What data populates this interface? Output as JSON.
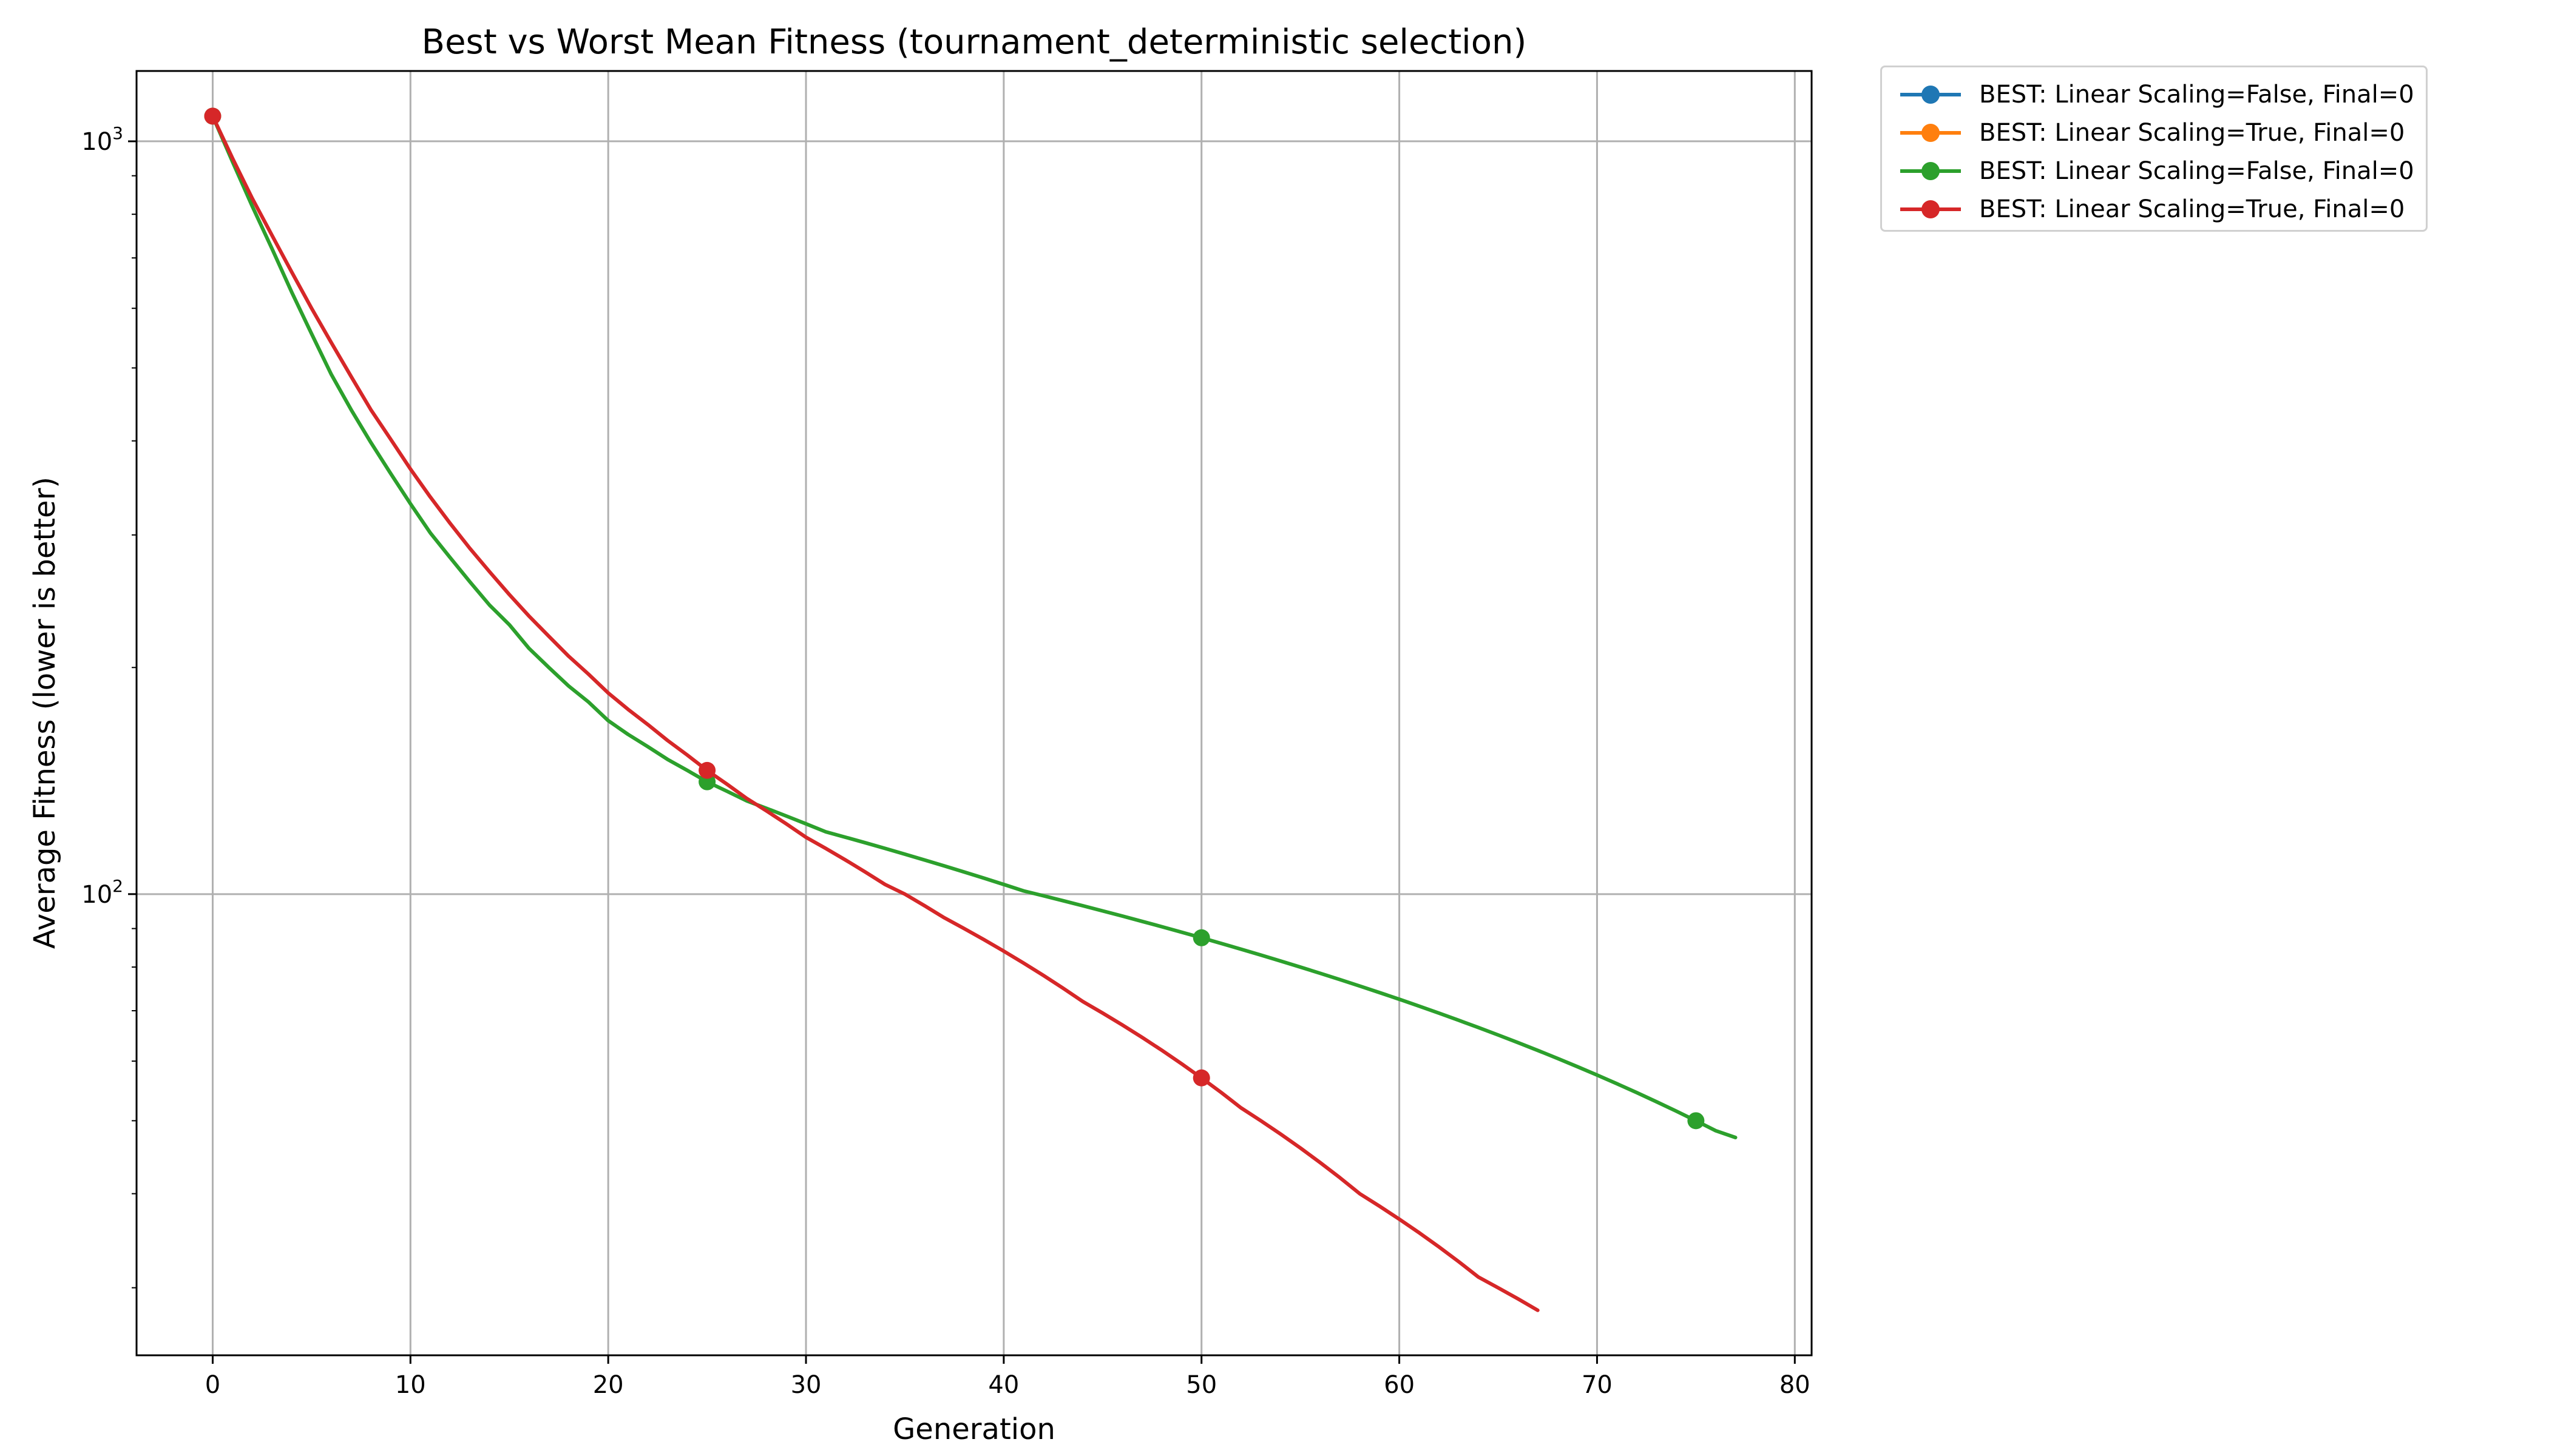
{
  "chart_data": {
    "type": "line",
    "title": "Best vs Worst Mean Fitness (tournament_deterministic selection)",
    "xlabel": "Generation",
    "ylabel": "Average Fitness (lower is better)",
    "xlim": [
      -3.85,
      80.85
    ],
    "ylim": [
      24.4,
      1240
    ],
    "yscale": "log",
    "grid": true,
    "legend_placement": "outside-top-right",
    "x_ticks": [
      0,
      10,
      20,
      30,
      40,
      50,
      60,
      70,
      80
    ],
    "y_ticks": [
      {
        "value": 1000,
        "base": "10",
        "exp": "3"
      },
      {
        "value": 100,
        "base": "10",
        "exp": "2"
      }
    ],
    "marker_every": 25,
    "series": [
      {
        "name": "BEST: Linear Scaling=False, Final=0",
        "color": "#1f77b4",
        "x": [],
        "y": []
      },
      {
        "name": "BEST: Linear Scaling=True, Final=0",
        "color": "#ff7f0e",
        "x": [],
        "y": []
      },
      {
        "name": "BEST: Linear Scaling=False, Final=0",
        "color": "#2ca02c",
        "x": [
          0,
          1,
          2,
          3,
          4,
          5,
          6,
          7,
          8,
          9,
          10,
          11,
          12,
          13,
          14,
          15,
          16,
          17,
          18,
          19,
          20,
          21,
          22,
          23,
          24,
          25,
          26,
          27,
          28,
          29,
          30,
          31,
          32,
          33,
          34,
          35,
          36,
          37,
          38,
          39,
          40,
          41,
          42,
          43,
          44,
          45,
          46,
          47,
          48,
          49,
          50,
          51,
          52,
          53,
          54,
          55,
          56,
          57,
          58,
          59,
          60,
          61,
          62,
          63,
          64,
          65,
          66,
          67,
          68,
          69,
          70,
          71,
          72,
          73,
          74,
          75,
          76,
          77
        ],
        "y": [
          1080,
          940,
          820,
          720,
          630,
          555,
          490,
          440,
          398,
          362,
          330,
          302,
          280,
          260,
          242,
          228,
          212,
          200,
          189,
          180,
          170,
          163,
          157,
          151,
          146,
          141,
          137,
          133,
          130,
          127,
          124,
          121,
          119,
          117,
          115,
          113,
          111,
          109,
          107,
          105,
          103,
          101,
          99.5,
          98,
          96.5,
          95,
          93.5,
          92,
          90.5,
          89,
          87.5,
          86,
          84.5,
          83,
          81.5,
          80,
          78.5,
          77,
          75.5,
          74,
          72.5,
          71,
          69.5,
          68,
          66.5,
          65,
          63.5,
          62,
          60.5,
          59,
          57.5,
          56,
          54.5,
          53,
          51.5,
          50,
          48.5,
          47.5
        ]
      },
      {
        "name": "BEST: Linear Scaling=True, Final=0",
        "color": "#d62728",
        "x": [
          0,
          1,
          2,
          3,
          4,
          5,
          6,
          7,
          8,
          9,
          10,
          11,
          12,
          13,
          14,
          15,
          16,
          17,
          18,
          19,
          20,
          21,
          22,
          23,
          24,
          25,
          26,
          27,
          28,
          29,
          30,
          31,
          32,
          33,
          34,
          35,
          36,
          37,
          38,
          39,
          40,
          41,
          42,
          43,
          44,
          45,
          46,
          47,
          48,
          49,
          50,
          51,
          52,
          53,
          54,
          55,
          56,
          57,
          58,
          59,
          60,
          61,
          62,
          63,
          64,
          65,
          66,
          67
        ],
        "y": [
          1080,
          950,
          840,
          750,
          670,
          600,
          540,
          487,
          440,
          402,
          367,
          337,
          311,
          288,
          268,
          250,
          234,
          220,
          207,
          196,
          185,
          176,
          168,
          160,
          153,
          146,
          140,
          134,
          129,
          124,
          119,
          115,
          111,
          107,
          103,
          100,
          96.5,
          93,
          90,
          87,
          84,
          81,
          78,
          75,
          72,
          69.5,
          67,
          64.5,
          62,
          59.5,
          57,
          54.5,
          52,
          50,
          48,
          46,
          44,
          42,
          40,
          38.5,
          37,
          35.5,
          34,
          32.5,
          31,
          30,
          29,
          28
        ]
      }
    ]
  }
}
